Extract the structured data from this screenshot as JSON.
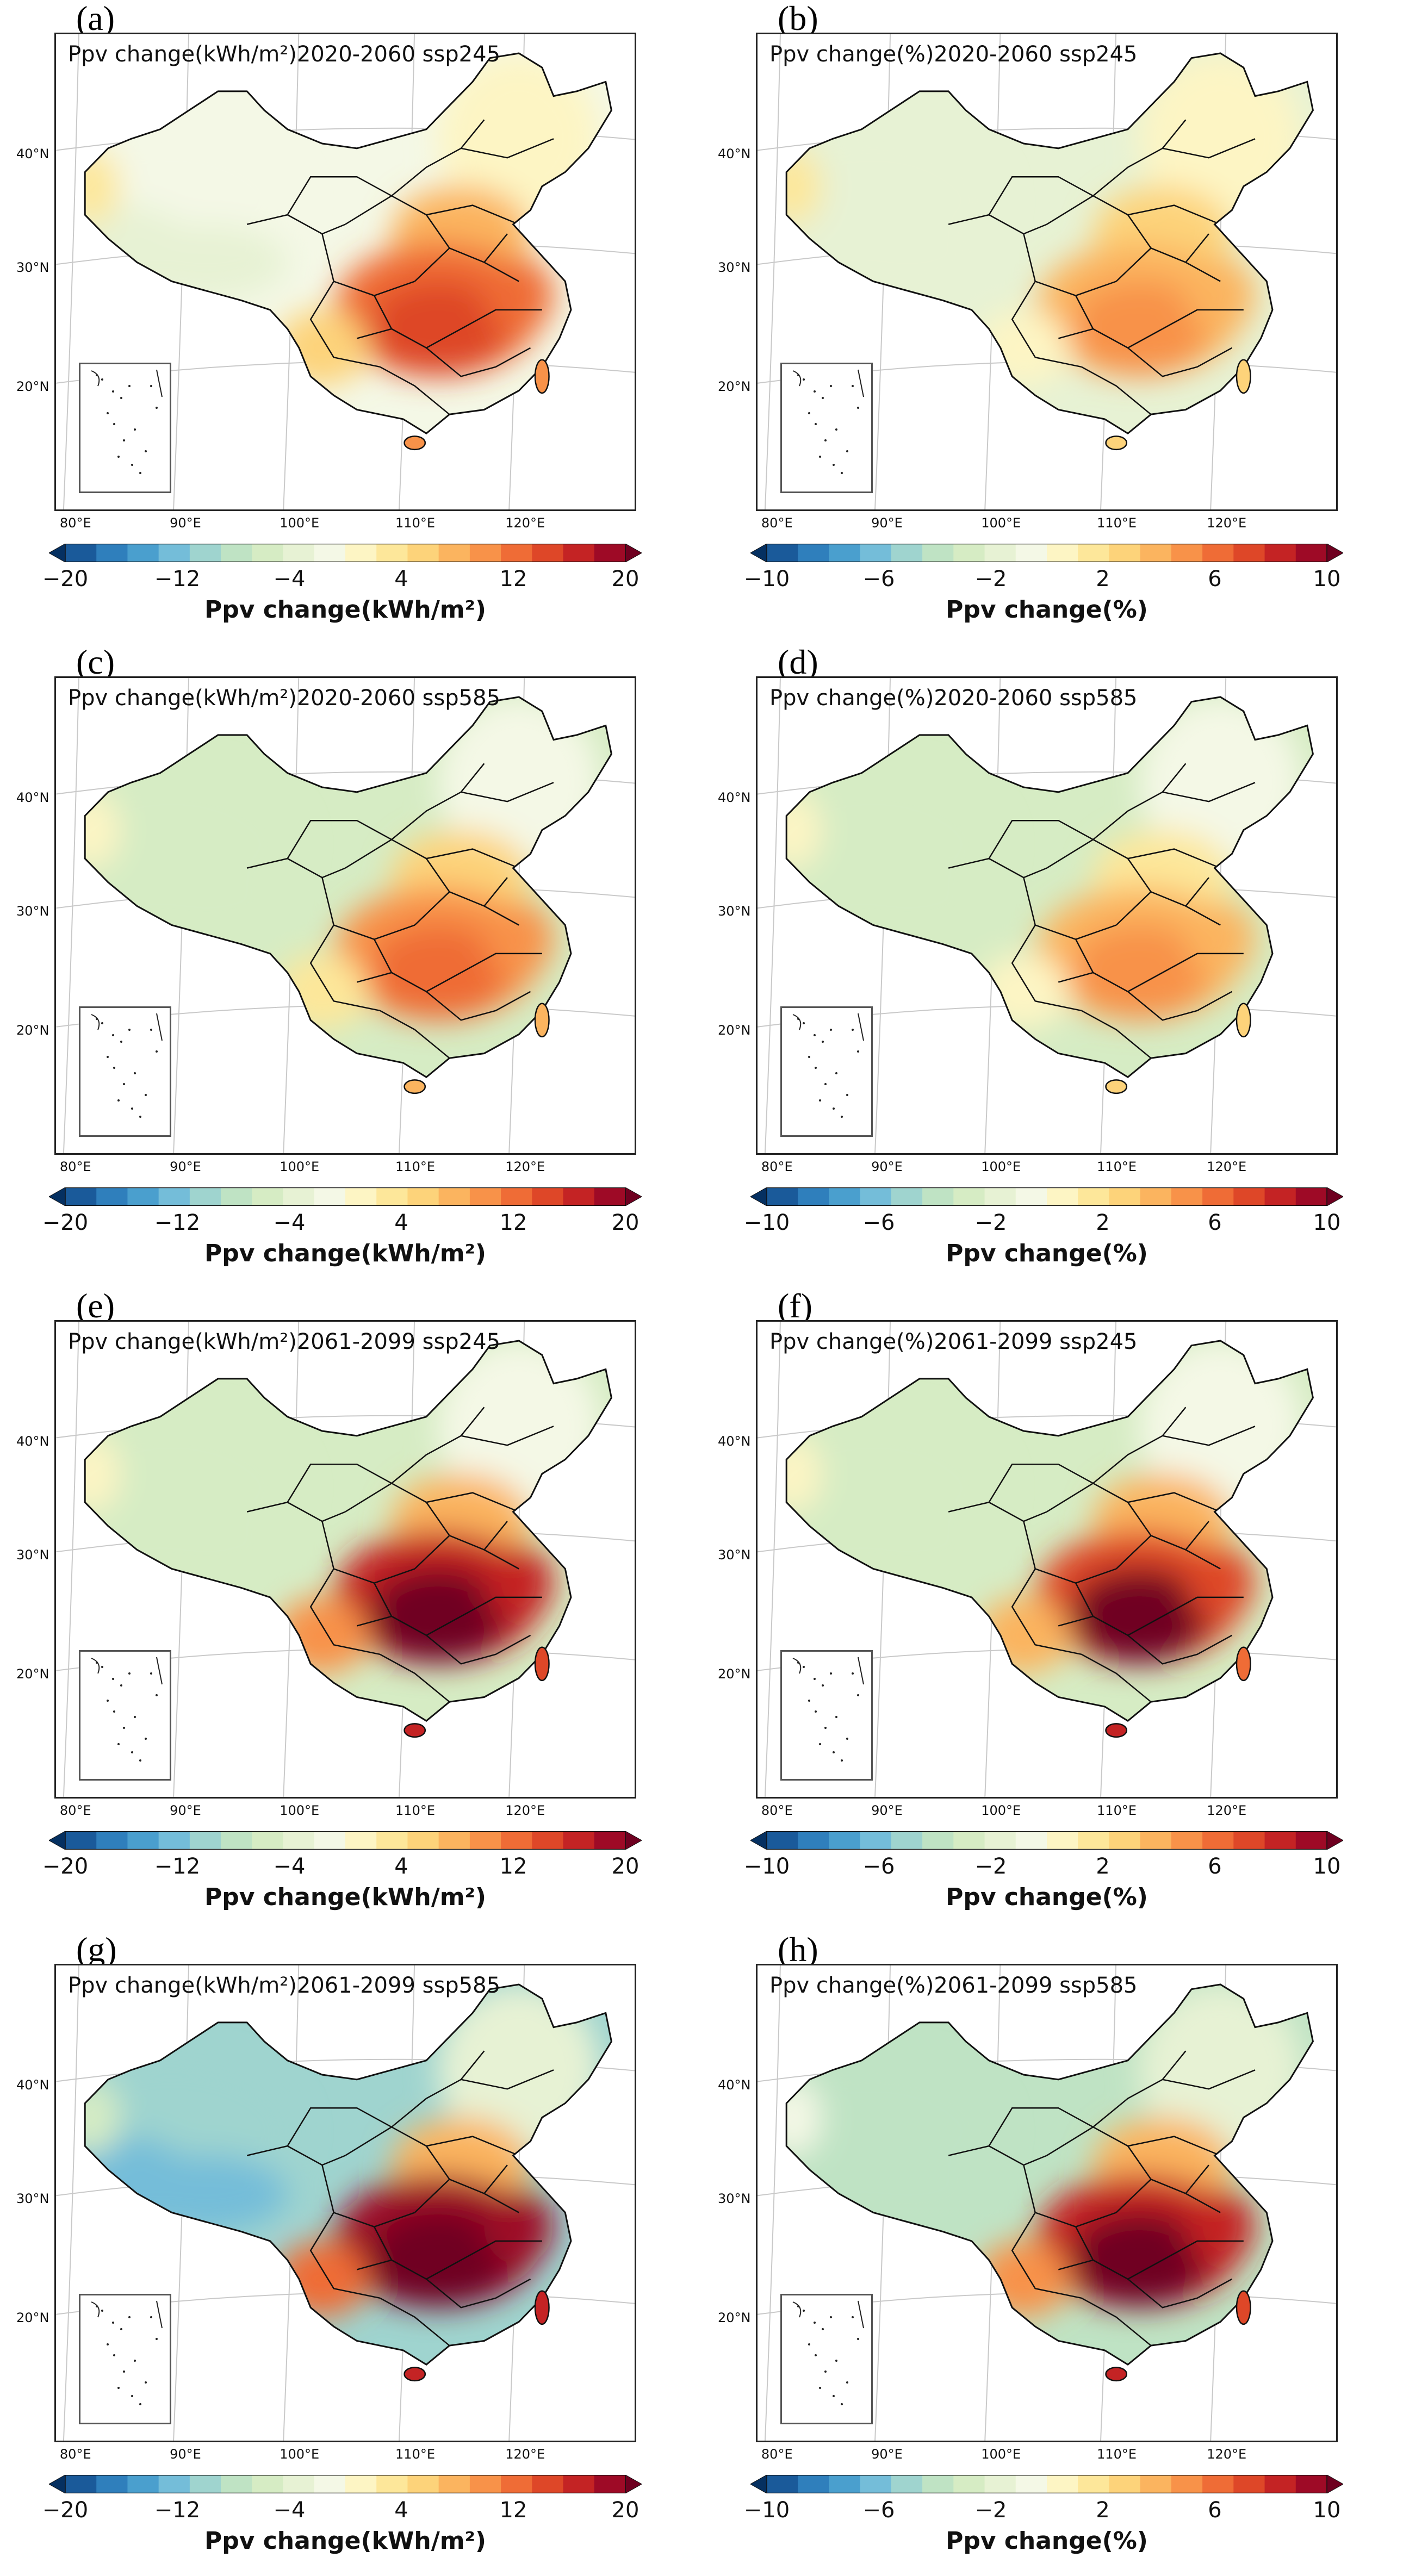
{
  "figure": {
    "colors": {
      "scale": [
        "#053061",
        "#1a5a9a",
        "#2f7fbc",
        "#4a9fce",
        "#74bdd9",
        "#9fd4cf",
        "#bfe3c4",
        "#d6ecc4",
        "#e7f2d4",
        "#f4f8e6",
        "#fdf5c4",
        "#fde79a",
        "#fdd37a",
        "#fbb45f",
        "#f89249",
        "#ef6c36",
        "#de4728",
        "#c42324",
        "#9e0a26",
        "#6f0020"
      ],
      "ocean": "#ffffff",
      "border": "#111111"
    },
    "lat_labels": [
      "40°N",
      "30°N",
      "20°N"
    ],
    "lon_labels": [
      "80°E",
      "90°E",
      "100°E",
      "110°E",
      "120°E"
    ]
  },
  "panels": [
    {
      "letter": "(a)",
      "title": "Ppv change(kWh/m²)2020-2060 ssp245",
      "cbar_ticks": [
        "−20",
        "−12",
        "−4",
        "4",
        "12",
        "20"
      ],
      "cbar_label": "Ppv change(kWh/m²)",
      "pattern": {
        "west": 8,
        "northwest": 9,
        "northeast": 10,
        "south_east": 15,
        "south_core": 16
      }
    },
    {
      "letter": "(b)",
      "title": "Ppv change(%)2020-2060 ssp245",
      "cbar_ticks": [
        "−10",
        "−6",
        "−2",
        "2",
        "6",
        "10"
      ],
      "cbar_label": "Ppv change(%)",
      "pattern": {
        "west": 8,
        "northwest": 8,
        "northeast": 10,
        "south_east": 13,
        "south_core": 14
      }
    },
    {
      "letter": "(c)",
      "title": "Ppv change(kWh/m²)2020-2060 ssp585",
      "cbar_ticks": [
        "−20",
        "−12",
        "−4",
        "4",
        "12",
        "20"
      ],
      "cbar_label": "Ppv change(kWh/m²)",
      "pattern": {
        "west": 7,
        "northwest": 7,
        "northeast": 9,
        "south_east": 14,
        "south_core": 15
      }
    },
    {
      "letter": "(d)",
      "title": "Ppv change(%)2020-2060 ssp585",
      "cbar_ticks": [
        "−10",
        "−6",
        "−2",
        "2",
        "6",
        "10"
      ],
      "cbar_label": "Ppv change(%)",
      "pattern": {
        "west": 7,
        "northwest": 7,
        "northeast": 9,
        "south_east": 13,
        "south_core": 14
      }
    },
    {
      "letter": "(e)",
      "title": "Ppv change(kWh/m²)2061-2099 ssp245",
      "cbar_ticks": [
        "−20",
        "−12",
        "−4",
        "4",
        "12",
        "20"
      ],
      "cbar_label": "Ppv change(kWh/m²)",
      "pattern": {
        "west": 7,
        "northwest": 7,
        "northeast": 9,
        "south_east": 17,
        "south_core": 19
      }
    },
    {
      "letter": "(f)",
      "title": "Ppv change(%)2061-2099 ssp245",
      "cbar_ticks": [
        "−10",
        "−6",
        "−2",
        "2",
        "6",
        "10"
      ],
      "cbar_label": "Ppv change(%)",
      "pattern": {
        "west": 7,
        "northwest": 7,
        "northeast": 9,
        "south_east": 16,
        "south_core": 19
      }
    },
    {
      "letter": "(g)",
      "title": "Ppv change(kWh/m²)2061-2099 ssp585",
      "cbar_ticks": [
        "−20",
        "−12",
        "−4",
        "4",
        "12",
        "20"
      ],
      "cbar_label": "Ppv change(kWh/m²)",
      "pattern": {
        "west": 4,
        "northwest": 5,
        "northeast": 8,
        "south_east": 18,
        "south_core": 19
      }
    },
    {
      "letter": "(h)",
      "title": "Ppv change(%)2061-2099 ssp585",
      "cbar_ticks": [
        "−10",
        "−6",
        "−2",
        "2",
        "6",
        "10"
      ],
      "cbar_label": "Ppv change(%)",
      "pattern": {
        "west": 6,
        "northwest": 6,
        "northeast": 8,
        "south_east": 17,
        "south_core": 19
      }
    }
  ]
}
